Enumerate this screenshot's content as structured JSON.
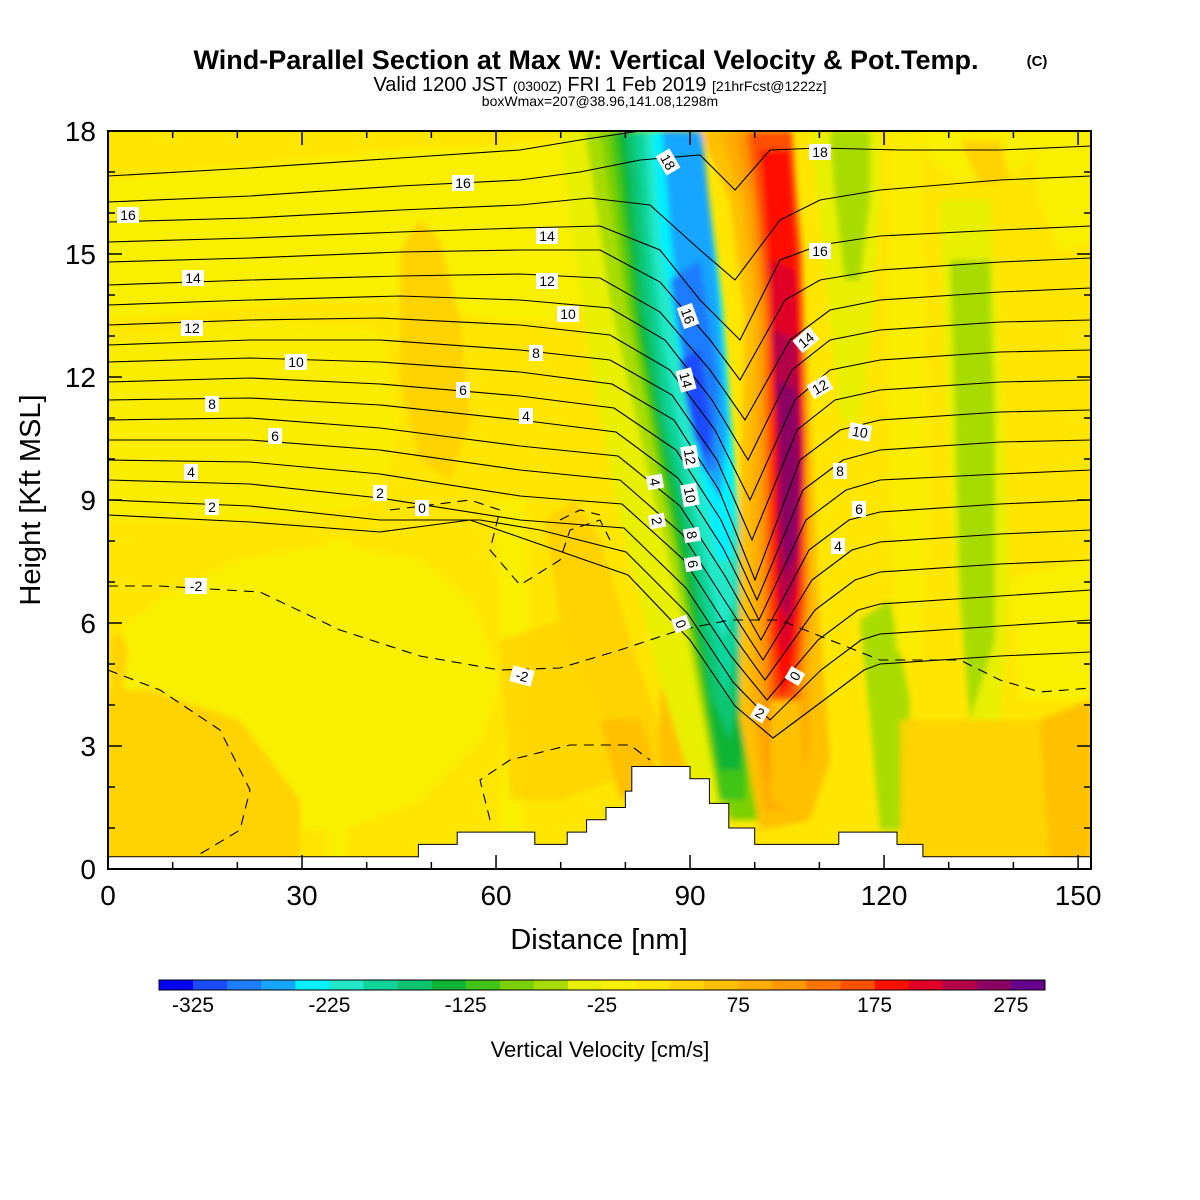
{
  "title": {
    "main": "Wind-Parallel Section at Max W: Vertical Velocity & Pot.Temp.",
    "copyright": "(C)",
    "valid_prefix": "Valid 1200 JST",
    "valid_utc": "(0300Z)",
    "valid_date": "FRI 1 Feb 2019",
    "forecast": "[21hrFcst@1222z]",
    "box_info": "boxWmax=207@38.96,141.08,1298m"
  },
  "chart_data": {
    "type": "heatmap",
    "xlabel": "Distance [nm]",
    "ylabel": "Height [Kft MSL]",
    "xlim": [
      0,
      152
    ],
    "ylim": [
      0,
      18
    ],
    "x_ticks": [
      0,
      30,
      60,
      90,
      120,
      150
    ],
    "y_ticks": [
      0,
      3,
      6,
      9,
      12,
      15,
      18
    ],
    "colorbar": {
      "label": "Vertical Velocity [cm/s]",
      "tick_labels": [
        "-325",
        "-225",
        "-125",
        "-25",
        "75",
        "175",
        "275"
      ],
      "tick_values": [
        -325,
        -225,
        -125,
        -25,
        75,
        175,
        275
      ],
      "range": [
        -350,
        300
      ],
      "bin_width": 25,
      "colors": [
        "#0000ff",
        "#1a4cff",
        "#1e7cff",
        "#16a6ff",
        "#00f0ff",
        "#22e8c8",
        "#10d49a",
        "#0cc470",
        "#10b434",
        "#40c418",
        "#7ad000",
        "#a8dc00",
        "#e8f000",
        "#f8f000",
        "#ffe600",
        "#ffd200",
        "#ffc000",
        "#ffac00",
        "#ff9800",
        "#ff7400",
        "#ff5000",
        "#ff1000",
        "#e00028",
        "#b40048",
        "#8c0064",
        "#64008c"
      ]
    },
    "terrain_profile": [
      [
        0,
        0.3
      ],
      [
        48,
        0.3
      ],
      [
        48,
        0.6
      ],
      [
        54,
        0.6
      ],
      [
        54,
        0.9
      ],
      [
        66,
        0.9
      ],
      [
        66,
        0.6
      ],
      [
        71,
        0.6
      ],
      [
        71,
        0.9
      ],
      [
        74,
        0.9
      ],
      [
        74,
        1.2
      ],
      [
        77,
        1.2
      ],
      [
        77,
        1.5
      ],
      [
        80,
        1.5
      ],
      [
        80,
        1.9
      ],
      [
        81,
        1.9
      ],
      [
        81,
        2.5
      ],
      [
        83,
        2.5
      ],
      [
        83,
        2.5
      ],
      [
        86,
        2.5
      ],
      [
        86,
        2.5
      ],
      [
        90,
        2.5
      ],
      [
        90,
        2.2
      ],
      [
        93,
        2.2
      ],
      [
        93,
        1.6
      ],
      [
        96,
        1.6
      ],
      [
        96,
        1.0
      ],
      [
        100,
        1.0
      ],
      [
        100,
        0.6
      ],
      [
        113,
        0.6
      ],
      [
        113,
        0.9
      ],
      [
        122,
        0.9
      ],
      [
        122,
        0.6
      ],
      [
        126,
        0.6
      ],
      [
        126,
        0.3
      ],
      [
        152,
        0.3
      ]
    ],
    "theta_contour_labels": [
      "-2",
      "0",
      "2",
      "4",
      "6",
      "8",
      "10",
      "12",
      "14",
      "16",
      "18"
    ]
  }
}
